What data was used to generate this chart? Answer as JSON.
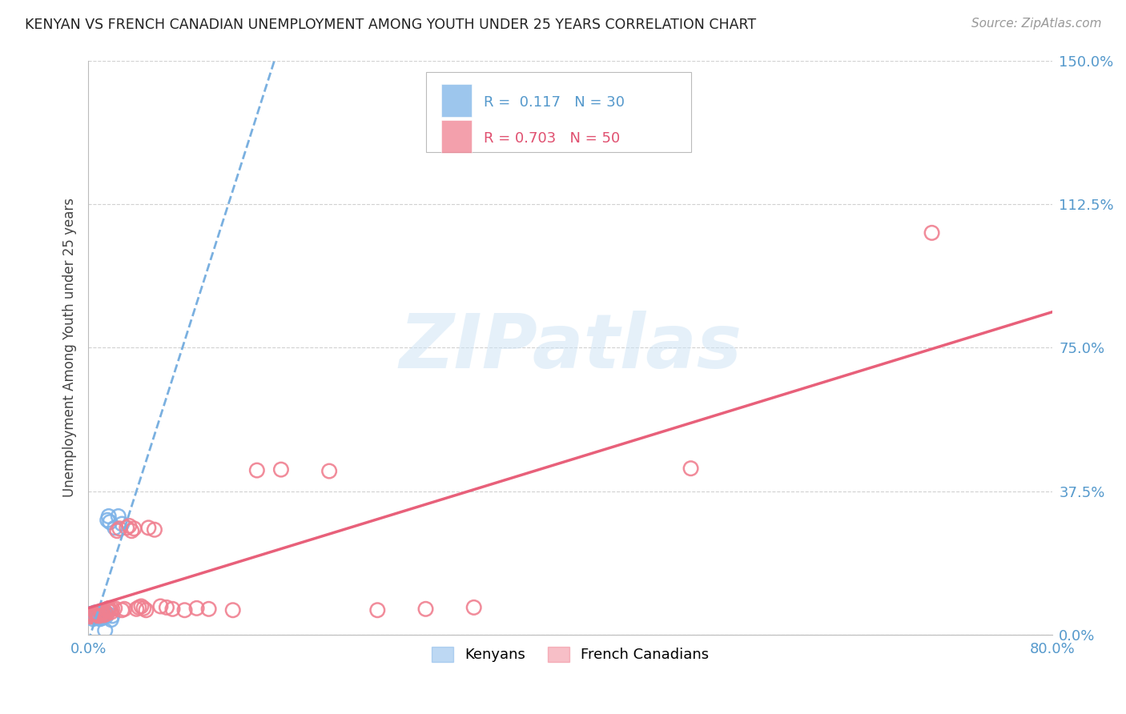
{
  "title": "KENYAN VS FRENCH CANADIAN UNEMPLOYMENT AMONG YOUTH UNDER 25 YEARS CORRELATION CHART",
  "source": "Source: ZipAtlas.com",
  "ylabel": "Unemployment Among Youth under 25 years",
  "xlim": [
    0.0,
    0.8
  ],
  "ylim": [
    0.0,
    1.5
  ],
  "ytick_vals": [
    0.0,
    0.375,
    0.75,
    1.125,
    1.5
  ],
  "ytick_labels": [
    "0.0%",
    "37.5%",
    "75.0%",
    "112.5%",
    "150.0%"
  ],
  "xtick_vals": [
    0.0,
    0.1,
    0.2,
    0.3,
    0.4,
    0.5,
    0.6,
    0.7,
    0.8
  ],
  "xtick_labels": [
    "0.0%",
    "",
    "",
    "",
    "",
    "",
    "",
    "",
    "80.0%"
  ],
  "kenyan_R": 0.117,
  "kenyan_N": 30,
  "french_R": 0.703,
  "french_N": 50,
  "kenyan_color": "#7db3e8",
  "french_color": "#f08090",
  "kenyan_line_color": "#7ab0e0",
  "french_line_color": "#e8607a",
  "background_color": "#ffffff",
  "grid_color": "#cccccc",
  "kenyan_x": [
    0.001,
    0.002,
    0.003,
    0.004,
    0.005,
    0.006,
    0.007,
    0.008,
    0.009,
    0.01,
    0.011,
    0.012,
    0.013,
    0.014,
    0.015,
    0.016,
    0.017,
    0.018,
    0.019,
    0.02,
    0.022,
    0.025,
    0.028,
    0.012,
    0.015,
    0.01,
    0.008,
    0.006,
    0.004,
    0.014
  ],
  "kenyan_y": [
    0.055,
    0.048,
    0.052,
    0.042,
    0.058,
    0.046,
    0.05,
    0.044,
    0.053,
    0.055,
    0.048,
    0.06,
    0.05,
    0.055,
    0.058,
    0.3,
    0.31,
    0.295,
    0.04,
    0.05,
    0.28,
    0.31,
    0.29,
    0.045,
    0.05,
    0.042,
    0.055,
    0.058,
    0.048,
    0.012
  ],
  "french_x": [
    0.002,
    0.003,
    0.004,
    0.005,
    0.006,
    0.007,
    0.008,
    0.009,
    0.01,
    0.011,
    0.012,
    0.013,
    0.014,
    0.015,
    0.016,
    0.017,
    0.018,
    0.019,
    0.02,
    0.022,
    0.024,
    0.026,
    0.028,
    0.03,
    0.032,
    0.034,
    0.036,
    0.038,
    0.04,
    0.042,
    0.044,
    0.046,
    0.048,
    0.05,
    0.055,
    0.06,
    0.065,
    0.07,
    0.08,
    0.09,
    0.1,
    0.12,
    0.14,
    0.16,
    0.2,
    0.24,
    0.28,
    0.32,
    0.5,
    0.7
  ],
  "french_y": [
    0.048,
    0.052,
    0.055,
    0.05,
    0.058,
    0.052,
    0.055,
    0.05,
    0.06,
    0.055,
    0.058,
    0.052,
    0.06,
    0.055,
    0.065,
    0.07,
    0.065,
    0.06,
    0.068,
    0.07,
    0.272,
    0.278,
    0.065,
    0.068,
    0.28,
    0.285,
    0.272,
    0.278,
    0.068,
    0.072,
    0.075,
    0.07,
    0.065,
    0.28,
    0.275,
    0.075,
    0.072,
    0.068,
    0.065,
    0.07,
    0.068,
    0.065,
    0.43,
    0.432,
    0.428,
    0.065,
    0.068,
    0.072,
    0.435,
    1.05
  ]
}
